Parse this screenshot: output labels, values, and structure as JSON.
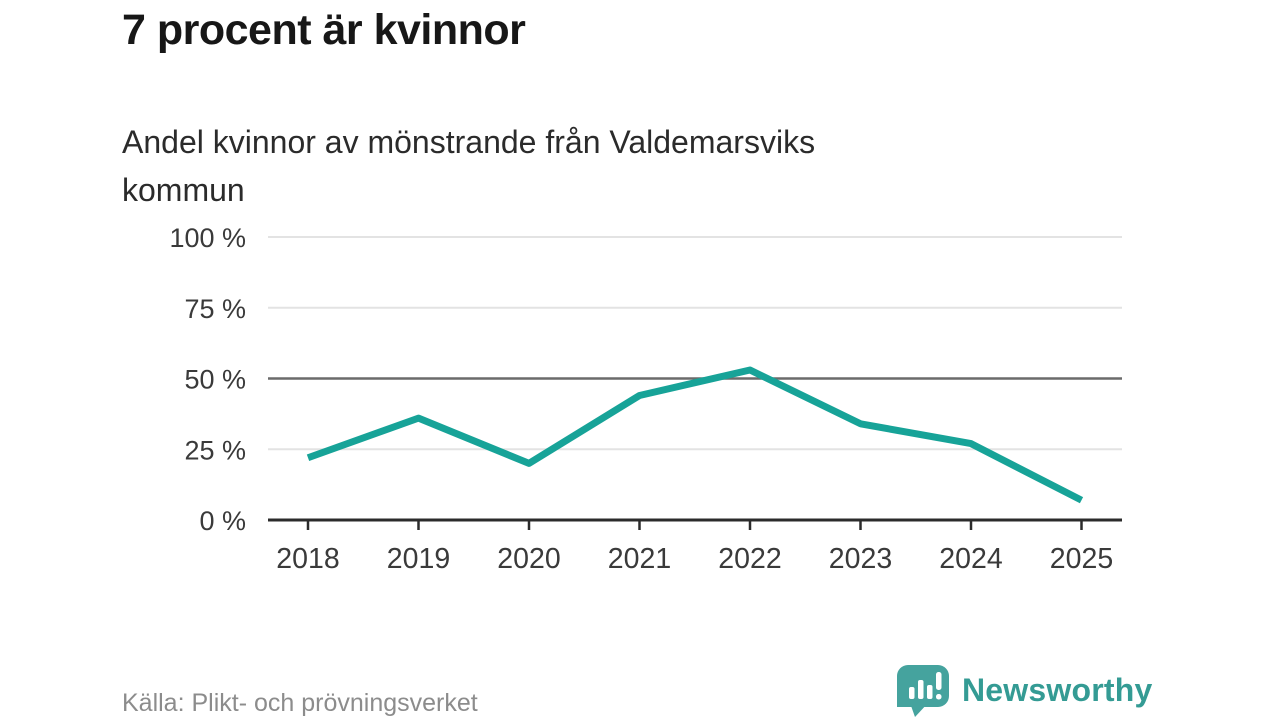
{
  "header": {
    "title": "7 procent är kvinnor",
    "subtitle": "Andel kvinnor av mönstrande från Valdemarsviks kommun"
  },
  "chart_data": {
    "type": "line",
    "x": [
      2018,
      2019,
      2020,
      2021,
      2022,
      2023,
      2024,
      2025
    ],
    "values": [
      22,
      36,
      20,
      44,
      53,
      34,
      27,
      7
    ],
    "series_name": "Andel kvinnor av mönstrande",
    "unit": "%",
    "ylim": [
      0,
      100
    ],
    "yticks": [
      0,
      25,
      50,
      75,
      100
    ],
    "ytick_labels": [
      "0 %",
      "25 %",
      "50 %",
      "75 %",
      "100 %"
    ],
    "xtick_labels": [
      "2018",
      "2019",
      "2020",
      "2021",
      "2022",
      "2023",
      "2024",
      "2025"
    ],
    "reference_line": 50,
    "grid": "horizontal",
    "legend": "none",
    "colors": {
      "line": "#17a398",
      "grid": "#e3e3e3",
      "reference_line": "#6b6b6b",
      "axis": "#2b2b2b",
      "tick_label": "#3a3a3a"
    }
  },
  "footer": {
    "source": "Källa: Plikt- och prövningsverket",
    "brand": "Newsworthy",
    "brand_color": "#349b94",
    "brand_icon": "speech-bubble-bar-chart-icon",
    "brand_icon_color": "#45a39e"
  }
}
